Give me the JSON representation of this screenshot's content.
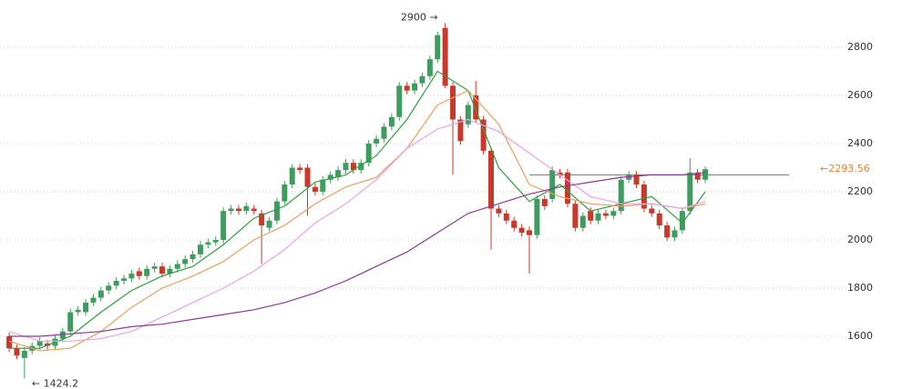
{
  "chart_data": {
    "type": "candlestick",
    "ylim": [
      1381,
      2996
    ],
    "xlim": [
      -1.2,
      105.4
    ],
    "yticks": [
      1600,
      1800,
      2000,
      2200,
      2400,
      2600,
      2800
    ],
    "grid": true,
    "up_color": "#3f9c5f",
    "down_color": "#c9392b",
    "open": [
      1600,
      1550,
      1510,
      1540,
      1560,
      1570,
      1560,
      1590,
      1620,
      1700,
      1700,
      1740,
      1760,
      1790,
      1810,
      1830,
      1840,
      1870,
      1850,
      1880,
      1890,
      1860,
      1880,
      1900,
      1920,
      1940,
      1980,
      1990,
      2000,
      2120,
      2130,
      2120,
      2130,
      2110,
      2050,
      2080,
      2160,
      2230,
      2300,
      2300,
      2220,
      2200,
      2250,
      2260,
      2290,
      2320,
      2290,
      2320,
      2400,
      2420,
      2470,
      2510,
      2640,
      2620,
      2650,
      2680,
      2750,
      2880,
      2640,
      2500,
      2480,
      2600,
      2500,
      2370,
      2130,
      2110,
      2080,
      2050,
      2040,
      2020,
      2170,
      2170,
      2280,
      2280,
      2150,
      2050,
      2120,
      2080,
      2110,
      2100,
      2120,
      2250,
      2270,
      2230,
      2130,
      2110,
      2060,
      2010,
      2040,
      2120,
      2280,
      2250
    ],
    "high": [
      1615,
      1565,
      1555,
      1575,
      1595,
      1585,
      1605,
      1635,
      1715,
      1725,
      1755,
      1775,
      1805,
      1825,
      1845,
      1855,
      1875,
      1885,
      1895,
      1905,
      1905,
      1895,
      1915,
      1935,
      1955,
      1995,
      2005,
      2015,
      2135,
      2145,
      2145,
      2155,
      2145,
      2125,
      2095,
      2175,
      2245,
      2315,
      2315,
      2315,
      2235,
      2265,
      2285,
      2305,
      2335,
      2335,
      2335,
      2415,
      2435,
      2485,
      2525,
      2655,
      2655,
      2665,
      2695,
      2765,
      2865,
      2900,
      2655,
      2515,
      2575,
      2660,
      2515,
      2385,
      2145,
      2125,
      2095,
      2065,
      2055,
      2185,
      2185,
      2305,
      2295,
      2295,
      2165,
      2115,
      2135,
      2125,
      2125,
      2135,
      2265,
      2285,
      2285,
      2245,
      2145,
      2125,
      2075,
      2055,
      2135,
      2340,
      2295,
      2305
    ],
    "low": [
      1535,
      1505,
      1424.2,
      1525,
      1545,
      1545,
      1545,
      1575,
      1605,
      1685,
      1685,
      1725,
      1745,
      1775,
      1795,
      1815,
      1825,
      1835,
      1835,
      1865,
      1845,
      1845,
      1865,
      1885,
      1905,
      1925,
      1965,
      1975,
      1985,
      2105,
      2105,
      2105,
      2105,
      1900,
      2035,
      2065,
      2145,
      2215,
      2275,
      2100,
      2185,
      2185,
      2235,
      2245,
      2275,
      2275,
      2275,
      2305,
      2385,
      2405,
      2455,
      2495,
      2605,
      2605,
      2635,
      2665,
      2735,
      2630,
      2270,
      2395,
      2465,
      2485,
      2355,
      1960,
      2095,
      2065,
      2035,
      2015,
      1860,
      2005,
      2125,
      2155,
      2255,
      2135,
      2035,
      2035,
      2065,
      2065,
      2085,
      2085,
      2105,
      2235,
      2215,
      2115,
      2095,
      2045,
      1995,
      1995,
      2025,
      2105,
      2235,
      2235
    ],
    "close": [
      1550,
      1520,
      1540,
      1560,
      1580,
      1560,
      1590,
      1620,
      1700,
      1710,
      1740,
      1760,
      1790,
      1810,
      1830,
      1840,
      1860,
      1850,
      1880,
      1890,
      1860,
      1880,
      1900,
      1920,
      1940,
      1980,
      1990,
      2000,
      2120,
      2130,
      2120,
      2140,
      2120,
      2060,
      2080,
      2160,
      2230,
      2300,
      2290,
      2220,
      2200,
      2250,
      2270,
      2290,
      2320,
      2290,
      2320,
      2400,
      2420,
      2470,
      2510,
      2640,
      2620,
      2650,
      2680,
      2750,
      2850,
      2640,
      2500,
      2410,
      2560,
      2500,
      2370,
      2130,
      2110,
      2080,
      2050,
      2030,
      2020,
      2170,
      2140,
      2290,
      2270,
      2150,
      2050,
      2100,
      2080,
      2110,
      2100,
      2120,
      2250,
      2270,
      2230,
      2130,
      2110,
      2060,
      2010,
      2040,
      2120,
      2280,
      2250,
      2293.56
    ],
    "lines": [
      {
        "color": "#2f9e3f",
        "x": [
          0,
          4,
          8,
          12,
          16,
          20,
          24,
          28,
          32,
          36,
          40,
          44,
          48,
          52,
          56,
          60,
          64,
          68,
          72,
          76,
          80,
          84,
          88,
          91
        ],
        "values": [
          1550,
          1550,
          1600,
          1700,
          1790,
          1850,
          1890,
          1980,
          2090,
          2140,
          2240,
          2270,
          2350,
          2500,
          2700,
          2620,
          2300,
          2160,
          2230,
          2120,
          2150,
          2180,
          2070,
          2200
        ]
      },
      {
        "color": "#e8a060",
        "x": [
          0,
          4,
          8,
          12,
          16,
          20,
          24,
          28,
          32,
          36,
          40,
          44,
          48,
          52,
          56,
          60,
          64,
          68,
          72,
          76,
          80,
          84,
          88,
          91
        ],
        "values": [
          1580,
          1540,
          1550,
          1620,
          1720,
          1800,
          1850,
          1910,
          2000,
          2060,
          2150,
          2220,
          2260,
          2380,
          2560,
          2620,
          2480,
          2230,
          2180,
          2150,
          2140,
          2150,
          2130,
          2150
        ]
      },
      {
        "color": "#e6a3e3",
        "x": [
          0,
          4,
          8,
          12,
          16,
          20,
          24,
          28,
          32,
          36,
          40,
          44,
          48,
          52,
          56,
          60,
          64,
          68,
          72,
          76,
          80,
          84,
          88,
          91
        ],
        "values": [
          1620,
          1580,
          1580,
          1590,
          1620,
          1680,
          1740,
          1800,
          1870,
          1960,
          2070,
          2150,
          2250,
          2380,
          2460,
          2500,
          2450,
          2360,
          2270,
          2180,
          2150,
          2150,
          2130,
          2160
        ]
      },
      {
        "color": "#8a3a98",
        "x": [
          0,
          4,
          8,
          12,
          16,
          20,
          24,
          28,
          32,
          36,
          40,
          44,
          48,
          52,
          56,
          60,
          64,
          68,
          72,
          76,
          80,
          84,
          88,
          91
        ],
        "values": [
          1600,
          1600,
          1610,
          1620,
          1640,
          1650,
          1670,
          1690,
          1710,
          1740,
          1780,
          1830,
          1890,
          1950,
          2030,
          2110,
          2150,
          2190,
          2220,
          2240,
          2260,
          2270,
          2270,
          2280
        ]
      }
    ],
    "reference_line": {
      "value": 2270,
      "x": [
        68,
        102
      ],
      "color": "#777"
    },
    "annotations": [
      {
        "label": "2900 →",
        "value": 2900,
        "x": 57,
        "anchor": "end"
      },
      {
        "label": "← 1424.2",
        "value": 1424.2,
        "x": 2,
        "anchor": "start"
      }
    ],
    "last_price": {
      "label": "←2293.56",
      "value": 2293.56,
      "color": "#e8803a"
    }
  }
}
